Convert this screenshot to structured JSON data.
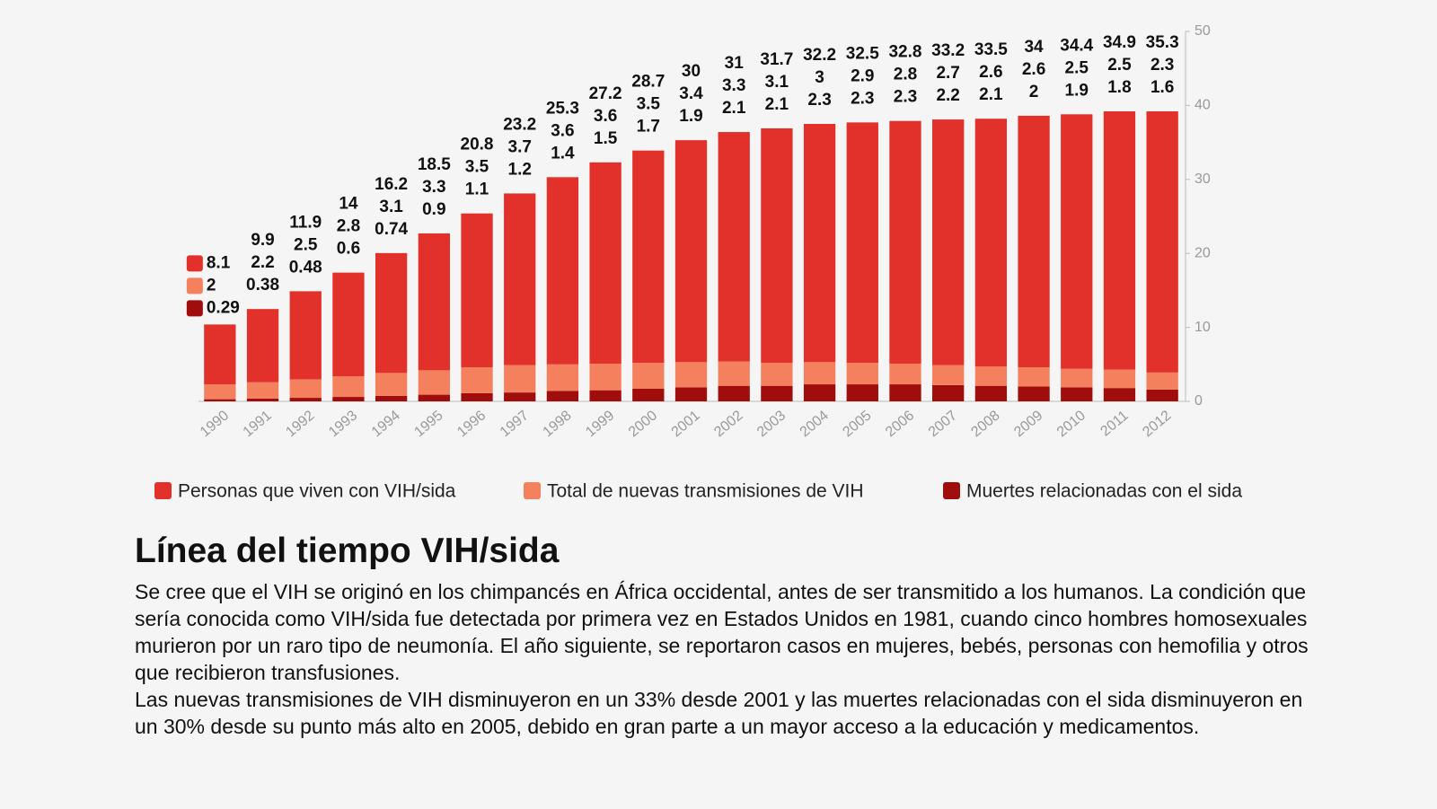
{
  "chart_data": {
    "type": "stacked-bar",
    "categories": [
      "1990",
      "1991",
      "1992",
      "1993",
      "1994",
      "1995",
      "1996",
      "1997",
      "1998",
      "1999",
      "2000",
      "2001",
      "2002",
      "2003",
      "2004",
      "2005",
      "2006",
      "2007",
      "2008",
      "2009",
      "2010",
      "2011",
      "2012"
    ],
    "series": [
      {
        "name": "Personas que viven con VIH/sida",
        "color": "#e2302a",
        "values": [
          8.1,
          9.9,
          11.9,
          14,
          16.2,
          18.5,
          20.8,
          23.2,
          25.3,
          27.2,
          28.7,
          30,
          31,
          31.7,
          32.2,
          32.5,
          32.8,
          33.2,
          33.5,
          34,
          34.4,
          34.9,
          35.3
        ]
      },
      {
        "name": "Total de nuevas transmisiones de VIH",
        "color": "#f4805e",
        "values": [
          2,
          2.2,
          2.5,
          2.8,
          3.1,
          3.3,
          3.5,
          3.7,
          3.6,
          3.6,
          3.5,
          3.4,
          3.3,
          3.1,
          3,
          2.9,
          2.8,
          2.7,
          2.6,
          2.6,
          2.5,
          2.5,
          2.3
        ]
      },
      {
        "name": "Muertes relacionadas con el sida",
        "color": "#a00d0d",
        "values": [
          0.29,
          0.38,
          0.48,
          0.6,
          0.74,
          0.9,
          1.1,
          1.2,
          1.4,
          1.5,
          1.7,
          1.9,
          2.1,
          2.1,
          2.3,
          2.3,
          2.3,
          2.2,
          2.1,
          2,
          1.9,
          1.8,
          1.6
        ]
      }
    ],
    "ylim": [
      0,
      50
    ],
    "yticks": [
      0,
      10,
      20,
      30,
      40,
      50
    ],
    "axis_side": "right"
  },
  "article": {
    "heading": "Línea del tiempo VIH/sida",
    "paragraphs": [
      "Se cree que el VIH se originó en los chimpancés en África occidental, antes de ser transmitido a los humanos. La condición que sería conocida como VIH/sida fue detectada por primera vez en Estados Unidos en 1981, cuando cinco hombres homosexuales murieron por un raro tipo de neumonía. El año siguiente, se reportaron casos en mujeres, bebés, personas con hemofilia y otros que recibieron transfusiones.",
      "Las nuevas transmisiones de VIH disminuyeron en un 33% desde 2001 y las muertes relacionadas con el sida disminuyeron en un 30% desde su punto más alto en 2005, debido en gran parte a un mayor acceso a la educación y medicamentos."
    ]
  }
}
